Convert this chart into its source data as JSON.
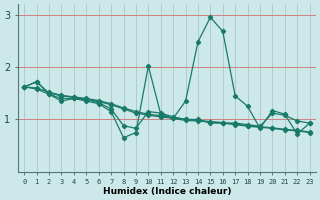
{
  "xlabel": "Humidex (Indice chaleur)",
  "ylabel": "",
  "background_color": "#cce8e8",
  "vgrid_color": "#b0cccc",
  "hgrid_color": "#d08080",
  "line_color": "#1a7a6a",
  "xlim": [
    -0.5,
    23.5
  ],
  "ylim": [
    0,
    3.2
  ],
  "yticks": [
    1,
    2,
    3
  ],
  "xticks": [
    0,
    1,
    2,
    3,
    4,
    5,
    6,
    7,
    8,
    9,
    10,
    11,
    12,
    13,
    14,
    15,
    16,
    17,
    18,
    19,
    20,
    21,
    22,
    23
  ],
  "series": [
    {
      "x": [
        0,
        1,
        2,
        3,
        4,
        5,
        6,
        7,
        8,
        9,
        10,
        11,
        12,
        13,
        14,
        15,
        16,
        17,
        18,
        19,
        20,
        21,
        22,
        23
      ],
      "y": [
        1.62,
        1.72,
        1.5,
        1.45,
        1.42,
        1.38,
        1.32,
        1.2,
        0.88,
        0.83,
        1.15,
        1.12,
        1.05,
        1.0,
        1.0,
        0.93,
        0.93,
        0.93,
        0.9,
        0.87,
        1.12,
        1.08,
        0.97,
        0.93
      ]
    },
    {
      "x": [
        0,
        1,
        2,
        3,
        4,
        5,
        6,
        7,
        8,
        9,
        10,
        11,
        12,
        13,
        14,
        15,
        16,
        17,
        18,
        19,
        20,
        21,
        22,
        23
      ],
      "y": [
        1.62,
        1.58,
        1.48,
        1.4,
        1.4,
        1.38,
        1.34,
        1.28,
        1.2,
        1.12,
        1.08,
        1.05,
        1.02,
        0.98,
        0.97,
        0.95,
        0.93,
        0.9,
        0.87,
        0.85,
        0.83,
        0.8,
        0.78,
        0.75
      ]
    },
    {
      "x": [
        0,
        1,
        2,
        3,
        4,
        5,
        6,
        7,
        8,
        9,
        10,
        11,
        12,
        13,
        14,
        15,
        16,
        17,
        18,
        19,
        20,
        21,
        22,
        23
      ],
      "y": [
        1.62,
        1.6,
        1.52,
        1.46,
        1.43,
        1.4,
        1.36,
        1.3,
        1.22,
        1.15,
        1.1,
        1.07,
        1.03,
        1.0,
        0.98,
        0.96,
        0.94,
        0.91,
        0.88,
        0.86,
        0.84,
        0.81,
        0.79,
        0.76
      ]
    },
    {
      "x": [
        0,
        1,
        2,
        3,
        4,
        5,
        6,
        7,
        8,
        9,
        10,
        11,
        12,
        13,
        14,
        15,
        16,
        17,
        18,
        19,
        20,
        21,
        22,
        23
      ],
      "y": [
        1.62,
        1.72,
        1.48,
        1.35,
        1.4,
        1.35,
        1.3,
        1.15,
        0.65,
        0.75,
        2.02,
        1.1,
        1.02,
        1.35,
        2.48,
        2.95,
        2.68,
        1.45,
        1.25,
        0.83,
        1.17,
        1.1,
        0.72,
        0.93
      ]
    }
  ]
}
